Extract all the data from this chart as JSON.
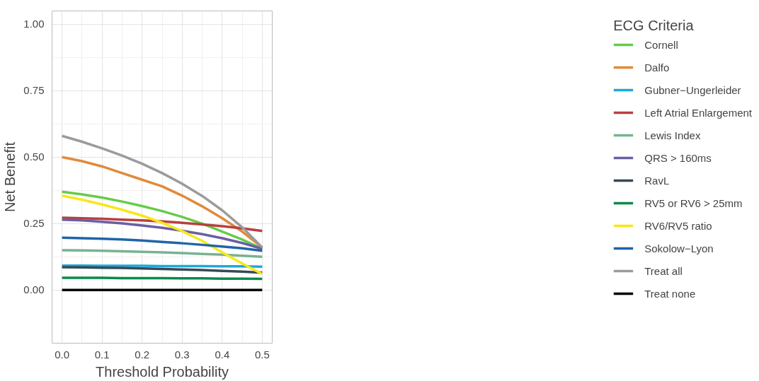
{
  "chart_data": {
    "type": "line",
    "xlabel": "Threshold Probability",
    "ylabel": "Net Benefit",
    "legend_title": "ECG Criteria",
    "legend": "right",
    "grid": true,
    "marker": "none",
    "line_style": "solid",
    "x": [
      0,
      0.05,
      0.1,
      0.15,
      0.2,
      0.25,
      0.3,
      0.35,
      0.4,
      0.45,
      0.5
    ],
    "xlim": [
      -0.025,
      0.525
    ],
    "xticks": [
      {
        "value": 0,
        "label": "0.0"
      },
      0.1,
      0.2,
      0.3,
      0.4,
      0.5
    ],
    "ylim": [
      -0.2,
      1.05
    ],
    "yticks": [
      {
        "value": 0,
        "label": "0.00"
      },
      0.25,
      {
        "value": 0.5,
        "label": "0.50"
      },
      0.75,
      {
        "value": 1,
        "label": "1.00"
      }
    ],
    "series": [
      {
        "name": "Cornell",
        "color": "#66cc4a",
        "values": [
          0.37,
          0.36,
          0.348,
          0.333,
          0.316,
          0.297,
          0.275,
          0.25,
          0.22,
          0.19,
          0.155
        ]
      },
      {
        "name": "Dalfo",
        "color": "#e08a3c",
        "values": [
          0.5,
          0.485,
          0.465,
          0.44,
          0.415,
          0.39,
          0.355,
          0.315,
          0.27,
          0.22,
          0.16
        ]
      },
      {
        "name": "Gubner−Ungerleider",
        "color": "#1ea8d8",
        "values": [
          0.092,
          0.092,
          0.091,
          0.091,
          0.091,
          0.09,
          0.09,
          0.09,
          0.089,
          0.089,
          0.088
        ]
      },
      {
        "name": "Left Atrial Enlargement",
        "color": "#b84040",
        "values": [
          0.272,
          0.27,
          0.268,
          0.265,
          0.262,
          0.258,
          0.253,
          0.247,
          0.24,
          0.232,
          0.222
        ]
      },
      {
        "name": "Lewis Index",
        "color": "#78b292",
        "values": [
          0.15,
          0.149,
          0.148,
          0.146,
          0.144,
          0.142,
          0.139,
          0.136,
          0.133,
          0.129,
          0.125
        ]
      },
      {
        "name": "QRS > 160ms",
        "color": "#6a5fa3",
        "values": [
          0.265,
          0.262,
          0.257,
          0.251,
          0.243,
          0.234,
          0.223,
          0.21,
          0.195,
          0.177,
          0.155
        ]
      },
      {
        "name": "RavL",
        "color": "#364a56",
        "values": [
          0.086,
          0.085,
          0.084,
          0.083,
          0.081,
          0.079,
          0.077,
          0.075,
          0.072,
          0.069,
          0.065
        ]
      },
      {
        "name": "RV5 or RV6 > 25mm",
        "color": "#0c8a4a",
        "values": [
          0.046,
          0.046,
          0.046,
          0.045,
          0.045,
          0.045,
          0.044,
          0.044,
          0.043,
          0.043,
          0.042
        ]
      },
      {
        "name": "RV6/RV5 ratio",
        "color": "#f8e71c",
        "values": [
          0.355,
          0.34,
          0.322,
          0.302,
          0.28,
          0.253,
          0.222,
          0.185,
          0.142,
          0.1,
          0.06
        ]
      },
      {
        "name": "Sokolow−Lyon",
        "color": "#1f65a8",
        "values": [
          0.197,
          0.195,
          0.193,
          0.19,
          0.186,
          0.181,
          0.176,
          0.17,
          0.164,
          0.157,
          0.148
        ]
      },
      {
        "name": "Treat all",
        "color": "#9b9b9b",
        "values": [
          0.58,
          0.558,
          0.533,
          0.506,
          0.475,
          0.44,
          0.4,
          0.354,
          0.3,
          0.236,
          0.16
        ]
      },
      {
        "name": "Treat none",
        "color": "#000000",
        "values": [
          0,
          0,
          0,
          0,
          0,
          0,
          0,
          0,
          0,
          0,
          0
        ]
      }
    ]
  }
}
